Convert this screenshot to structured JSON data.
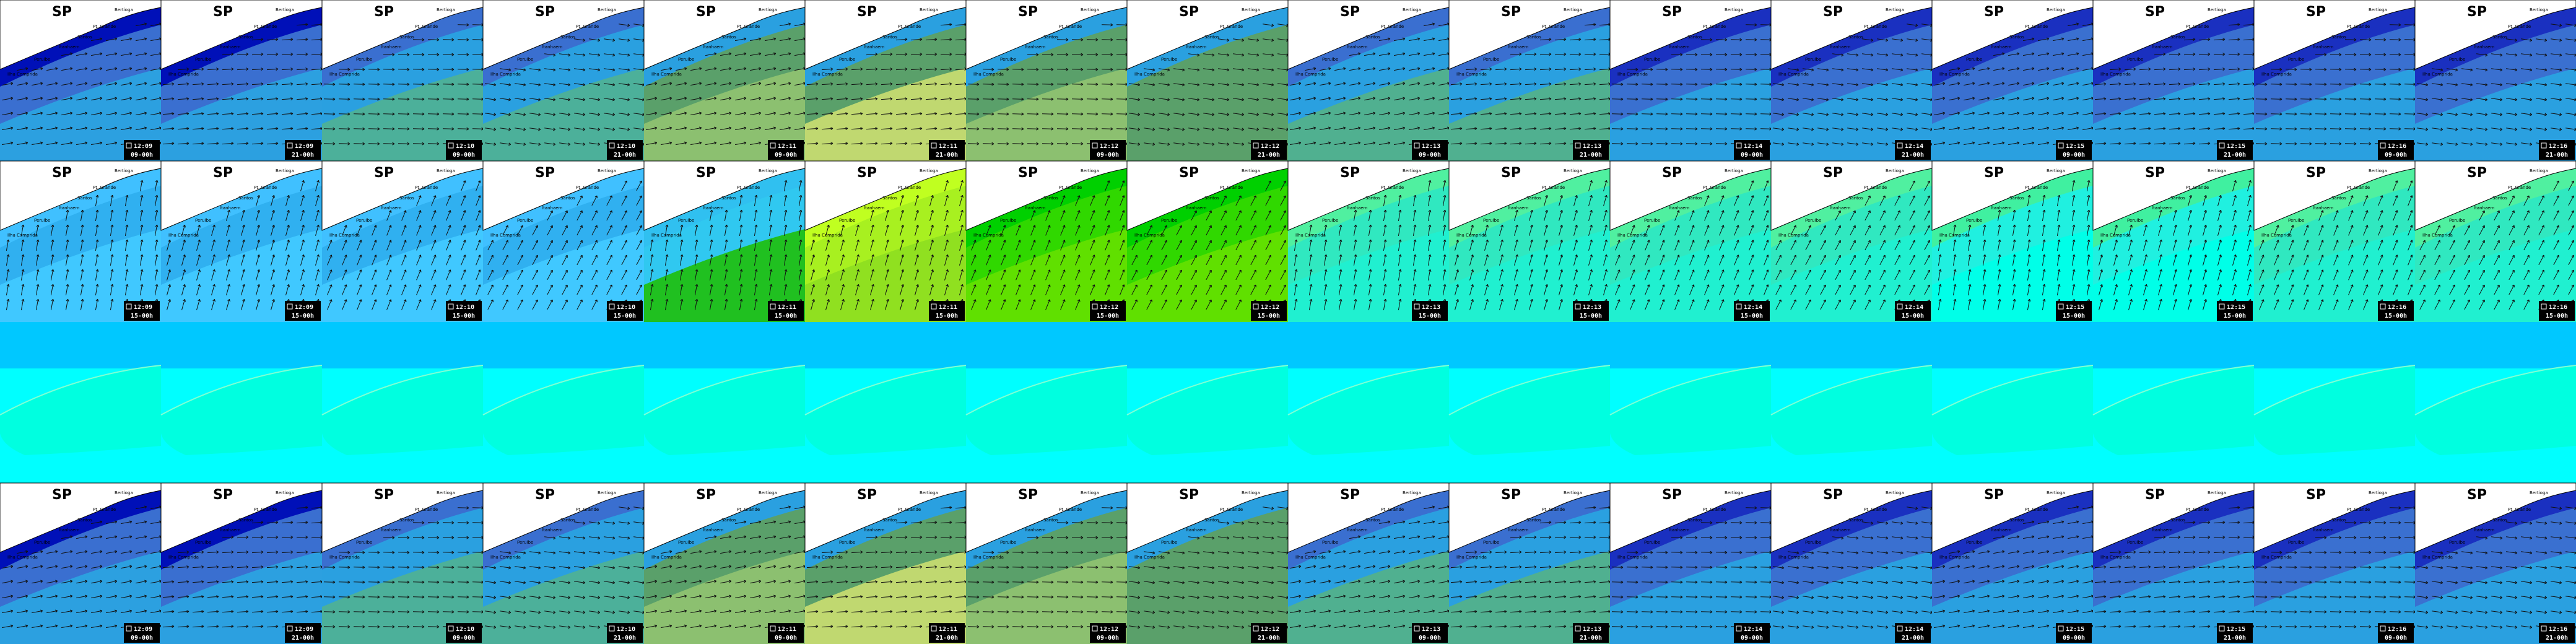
{
  "places": [
    "Bertioga",
    "Pt. Grande",
    "Santos",
    "Itanhaem",
    "Peruibe",
    "Ilha Comprida"
  ],
  "labeled_rows": [
    {
      "tiles": [
        {
          "title": "SP",
          "time": "12:09",
          "period": "09-00h"
        },
        {
          "title": "SP",
          "time": "12:09",
          "period": "21-00h"
        },
        {
          "title": "SP",
          "time": "12:10",
          "period": "09-00h"
        },
        {
          "title": "SP",
          "time": "12:10",
          "period": "21-00h"
        },
        {
          "title": "SP",
          "time": "12:11",
          "period": "09-00h"
        },
        {
          "title": "SP",
          "time": "12:11",
          "period": "21-00h"
        },
        {
          "title": "SP",
          "time": "12:12",
          "period": "09-00h"
        },
        {
          "title": "SP",
          "time": "12:12",
          "period": "21-00h"
        },
        {
          "title": "SP",
          "time": "12:13",
          "period": "09-00h"
        },
        {
          "title": "SP",
          "time": "12:13",
          "period": "21-00h"
        },
        {
          "title": "SP",
          "time": "12:14",
          "period": "09-00h"
        },
        {
          "title": "SP",
          "time": "12:14",
          "period": "21-00h"
        },
        {
          "title": "SP",
          "time": "12:15",
          "period": "09-00h"
        },
        {
          "title": "SP",
          "time": "12:15",
          "period": "21-00h"
        },
        {
          "title": "SP",
          "time": "12:16",
          "period": "09-00h"
        },
        {
          "title": "SP",
          "time": "12:16",
          "period": "21-00h"
        }
      ]
    },
    {
      "tiles": [
        {
          "title": "SP",
          "time": "12:09",
          "period": "15-00h"
        },
        {
          "title": "SP",
          "time": "12:09",
          "period": "15-00h"
        },
        {
          "title": "SP",
          "time": "12:10",
          "period": "15-00h"
        },
        {
          "title": "SP",
          "time": "12:10",
          "period": "15-00h"
        },
        {
          "title": "SP",
          "time": "12:11",
          "period": "15-00h"
        },
        {
          "title": "SP",
          "time": "12:11",
          "period": "15-00h"
        },
        {
          "title": "SP",
          "time": "12:12",
          "period": "15-00h"
        },
        {
          "title": "SP",
          "time": "12:12",
          "period": "15-00h"
        },
        {
          "title": "SP",
          "time": "12:13",
          "period": "15-00h"
        },
        {
          "title": "SP",
          "time": "12:13",
          "period": "15-00h"
        },
        {
          "title": "SP",
          "time": "12:14",
          "period": "15-00h"
        },
        {
          "title": "SP",
          "time": "12:14",
          "period": "15-00h"
        },
        {
          "title": "SP",
          "time": "12:15",
          "period": "15-00h"
        },
        {
          "title": "SP",
          "time": "12:15",
          "period": "15-00h"
        },
        {
          "title": "SP",
          "time": "12:16",
          "period": "15-00h"
        },
        {
          "title": "SP",
          "time": "12:16",
          "period": "15-00h"
        }
      ]
    },
    {
      "tiles": [
        {
          "title": "SP",
          "time": "12:09",
          "period": "09-00h"
        },
        {
          "title": "SP",
          "time": "12:09",
          "period": "21-00h"
        },
        {
          "title": "SP",
          "time": "12:10",
          "period": "09-00h"
        },
        {
          "title": "SP",
          "time": "12:10",
          "period": "21-00h"
        },
        {
          "title": "SP",
          "time": "12:11",
          "period": "09-00h"
        },
        {
          "title": "SP",
          "time": "12:11",
          "period": "21-00h"
        },
        {
          "title": "SP",
          "time": "12:12",
          "period": "09-00h"
        },
        {
          "title": "SP",
          "time": "12:12",
          "period": "21-00h"
        },
        {
          "title": "SP",
          "time": "12:13",
          "period": "09-00h"
        },
        {
          "title": "SP",
          "time": "12:13",
          "period": "21-00h"
        },
        {
          "title": "SP",
          "time": "12:14",
          "period": "09-00h"
        },
        {
          "title": "SP",
          "time": "12:14",
          "period": "21-00h"
        },
        {
          "title": "SP",
          "time": "12:15",
          "period": "09-00h"
        },
        {
          "title": "SP",
          "time": "12:15",
          "period": "21-00h"
        },
        {
          "title": "SP",
          "time": "12:16",
          "period": "09-00h"
        },
        {
          "title": "SP",
          "time": "12:16",
          "period": "21-00h"
        }
      ]
    }
  ]
}
